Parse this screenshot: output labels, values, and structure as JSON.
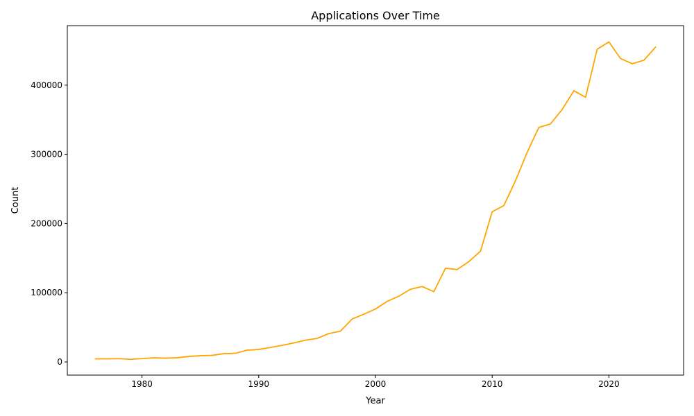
{
  "chart_data": {
    "type": "line",
    "title": "Applications Over Time",
    "xlabel": "Year",
    "ylabel": "Count",
    "xlim": [
      1973.6,
      2026.4
    ],
    "ylim": [
      -19000,
      486000
    ],
    "xticks": [
      1980,
      1990,
      2000,
      2010,
      2020
    ],
    "yticks": [
      0,
      100000,
      200000,
      300000,
      400000
    ],
    "grid": false,
    "legend": "none",
    "series": [
      {
        "name": "Applications",
        "color": "#FFA500",
        "x": [
          1976,
          1977,
          1978,
          1979,
          1980,
          1981,
          1982,
          1983,
          1984,
          1985,
          1986,
          1987,
          1988,
          1989,
          1990,
          1991,
          1992,
          1993,
          1994,
          1995,
          1996,
          1997,
          1998,
          1999,
          2000,
          2001,
          2002,
          2003,
          2004,
          2005,
          2006,
          2007,
          2008,
          2009,
          2010,
          2011,
          2012,
          2013,
          2014,
          2015,
          2016,
          2017,
          2018,
          2019,
          2020,
          2021,
          2022,
          2023,
          2024
        ],
        "y": [
          4500,
          4400,
          4800,
          3800,
          4800,
          6000,
          5500,
          6000,
          8000,
          9000,
          9500,
          12000,
          12500,
          17000,
          18000,
          21000,
          24000,
          27500,
          31500,
          34000,
          41000,
          44500,
          62000,
          69000,
          76500,
          87500,
          95000,
          105000,
          109000,
          101500,
          135500,
          133500,
          145000,
          160000,
          217000,
          226000,
          262000,
          303000,
          339000,
          344000,
          365000,
          392000,
          382500,
          452000,
          462500,
          438500,
          431000,
          436000,
          455000
        ]
      }
    ]
  }
}
